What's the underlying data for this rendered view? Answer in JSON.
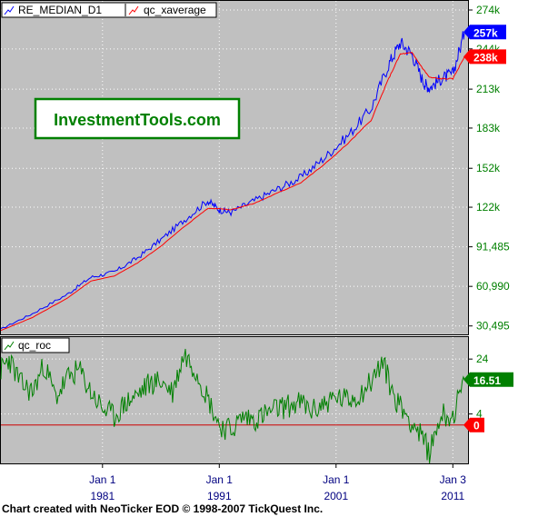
{
  "footer": "Chart created with NeoTicker EOD © 1998-2007 TickQuest Inc.",
  "watermark": "InvestmentTools.com",
  "colors": {
    "background": "#c0c0c0",
    "grid": "#ffffff",
    "median": "#0000ff",
    "xaverage": "#ff0000",
    "roc": "#008000",
    "zero_line": "#cc0000",
    "axis_text": "#008000",
    "watermark_text": "#008000"
  },
  "chart_data": [
    {
      "type": "line",
      "legend": [
        "RE_MEDIAN_D1",
        "qc_xaverage"
      ],
      "x_tick_labels": [
        {
          "top": "Jan 1",
          "bottom": "1981",
          "x": 1981.0
        },
        {
          "top": "Jan 1",
          "bottom": "1991",
          "x": 1991.0
        },
        {
          "top": "Jan 1",
          "bottom": "2001",
          "x": 2001.0
        },
        {
          "top": "Jan 3",
          "bottom": "2011",
          "x": 2011.0
        }
      ],
      "y_tick_labels": [
        {
          "label": "274k",
          "value": 274000
        },
        {
          "label": "244k",
          "value": 244000
        },
        {
          "label": "213k",
          "value": 213000
        },
        {
          "label": "183k",
          "value": 183000
        },
        {
          "label": "152k",
          "value": 152000
        },
        {
          "label": "122k",
          "value": 122000
        },
        {
          "label": "91,485",
          "value": 91485
        },
        {
          "label": "60,990",
          "value": 60990
        },
        {
          "label": "30,495",
          "value": 30495
        }
      ],
      "xlim": [
        1972.3,
        2012.3
      ],
      "ylim": [
        24000,
        281000
      ],
      "grid": true,
      "last_value_labels": [
        {
          "label": "257k",
          "value": 257000,
          "series": "RE_MEDIAN_D1"
        },
        {
          "label": "238k",
          "value": 238000,
          "series": "qc_xaverage"
        }
      ],
      "series": [
        {
          "name": "RE_MEDIAN_D1",
          "x": [
            1972.3,
            1975.0,
            1978.0,
            1980.0,
            1982.0,
            1984.0,
            1986.0,
            1988.0,
            1990.0,
            1991.0,
            1992.0,
            1994.0,
            1996.0,
            1998.0,
            2000.0,
            2002.0,
            2004.0,
            2005.5,
            2006.5,
            2007.5,
            2008.5,
            2009.0,
            2010.0,
            2011.0,
            2012.0
          ],
          "values": [
            28000,
            40000,
            55000,
            68000,
            72000,
            83000,
            97000,
            112000,
            127000,
            120000,
            118000,
            127000,
            136000,
            145000,
            160000,
            177000,
            198000,
            232000,
            249000,
            240000,
            218000,
            214000,
            221000,
            225000,
            257000
          ]
        },
        {
          "name": "qc_xaverage",
          "x": [
            1972.3,
            1975.0,
            1978.0,
            1980.0,
            1982.0,
            1984.0,
            1986.0,
            1988.0,
            1990.0,
            1991.0,
            1992.0,
            1994.0,
            1996.0,
            1998.0,
            2000.0,
            2002.0,
            2004.0,
            2005.5,
            2006.5,
            2007.5,
            2008.5,
            2009.0,
            2010.0,
            2011.0,
            2012.0
          ],
          "values": [
            27000,
            37000,
            52000,
            65000,
            69000,
            79000,
            92000,
            107000,
            121000,
            121000,
            120000,
            125000,
            133000,
            141000,
            155000,
            171000,
            189000,
            221000,
            240000,
            241000,
            228000,
            222000,
            221000,
            221000,
            238000
          ]
        }
      ]
    },
    {
      "type": "line",
      "legend": [
        "qc_roc"
      ],
      "y_tick_labels": [
        {
          "label": "24",
          "value": 24
        },
        {
          "label": "4",
          "value": 4
        }
      ],
      "xlim": [
        1972.3,
        2012.3
      ],
      "ylim": [
        -14,
        32
      ],
      "grid": true,
      "reference_line": {
        "label": "0",
        "value": 0
      },
      "last_value_labels": [
        {
          "label": "16.51",
          "value": 16.51,
          "series": "qc_roc"
        },
        {
          "label": "0",
          "value": 0,
          "series": "zero"
        }
      ],
      "series": [
        {
          "name": "qc_roc",
          "x": [
            1972.3,
            1973.0,
            1974.0,
            1975.0,
            1976.0,
            1977.0,
            1978.0,
            1979.0,
            1980.0,
            1981.0,
            1982.0,
            1983.0,
            1984.0,
            1985.0,
            1986.0,
            1987.0,
            1988.0,
            1989.0,
            1990.0,
            1991.0,
            1992.0,
            1993.0,
            1994.0,
            1995.0,
            1996.0,
            1997.0,
            1998.0,
            1999.0,
            2000.0,
            2001.0,
            2002.0,
            2003.0,
            2004.0,
            2005.0,
            2006.0,
            2007.0,
            2008.0,
            2009.0,
            2010.0,
            2011.0,
            2012.0
          ],
          "values": [
            20,
            24,
            15,
            12,
            22,
            10,
            17,
            20,
            12,
            6,
            3,
            8,
            11,
            15,
            16,
            12,
            26,
            20,
            10,
            0,
            -2,
            3,
            2,
            4,
            6,
            7,
            8,
            5,
            8,
            10,
            9,
            11,
            16,
            23,
            10,
            4,
            -2,
            -10,
            4,
            3,
            16.51
          ]
        }
      ]
    }
  ]
}
